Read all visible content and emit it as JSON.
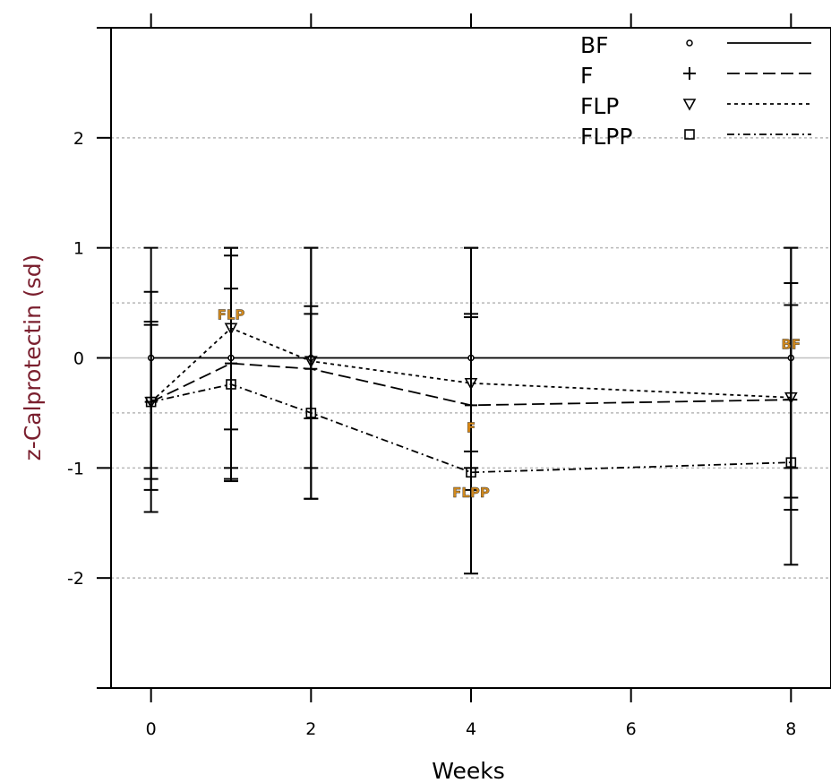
{
  "chart_data": {
    "type": "line",
    "xlabel": "Weeks",
    "ylabel": "z-Calprotectin (sd)",
    "xlim": [
      -0.5,
      8.5
    ],
    "ylim": [
      -3,
      3
    ],
    "x_ticks": [
      0,
      2,
      4,
      6,
      8
    ],
    "y_ticks": [
      -2,
      -1,
      0,
      1,
      2
    ],
    "y_tick_labels": [
      "-2",
      "-1",
      "0",
      "1",
      "2"
    ],
    "x_tick_labels": [
      "0",
      "2",
      "4",
      "6",
      "8"
    ],
    "grid_lines_y": [
      -2,
      -1,
      -0.5,
      0.5,
      1,
      2
    ],
    "reference_line_y": 0,
    "legend_position": "top-right",
    "series": [
      {
        "name": "BF",
        "symbol": "circle",
        "linestyle": "solid",
        "x": [
          0,
          1,
          2,
          4,
          8
        ],
        "y": [
          0,
          0,
          0,
          0,
          0
        ],
        "ci_low": [
          -1,
          -1,
          -1,
          -1,
          -1
        ],
        "ci_high": [
          1,
          1,
          1,
          1,
          1
        ]
      },
      {
        "name": "F",
        "symbol": "plus",
        "linestyle": "dashed",
        "x": [
          0,
          1,
          2,
          4,
          8
        ],
        "y": [
          -0.4,
          -0.05,
          -0.1,
          -0.43,
          -0.38
        ],
        "ci_low": [
          -1.4,
          -1.1,
          -1.28,
          -1.2,
          -1.38
        ],
        "ci_high": [
          0.6,
          0.93,
          1.0,
          0.37,
          0.68
        ]
      },
      {
        "name": "FLP",
        "symbol": "triangle-down",
        "linestyle": "dotted",
        "x": [
          0,
          1,
          2,
          4,
          8
        ],
        "y": [
          -0.4,
          0.27,
          -0.03,
          -0.23,
          -0.36
        ],
        "ci_low": [
          -1.2,
          -0.65,
          -0.55,
          -0.85,
          -1.27
        ],
        "ci_high": [
          0.33,
          1.0,
          0.47,
          1.0,
          1.0
        ]
      },
      {
        "name": "FLPP",
        "symbol": "square",
        "linestyle": "dotdash",
        "x": [
          0,
          1,
          2,
          4,
          8
        ],
        "y": [
          -0.4,
          -0.24,
          -0.5,
          -1.04,
          -0.95
        ],
        "ci_low": [
          -1.1,
          -1.12,
          -1.28,
          -1.96,
          -1.88
        ],
        "ci_high": [
          0.3,
          0.63,
          0.4,
          0.4,
          0.48
        ]
      }
    ],
    "point_labels": [
      {
        "text": "FLP",
        "x": 1,
        "y": 0.27,
        "color": "#d28a1e"
      },
      {
        "text": "BF",
        "x": 8,
        "y": 0.0,
        "color": "#d28a1e"
      },
      {
        "text": "F",
        "x": 4,
        "y": -0.43,
        "color": "#e08a10"
      },
      {
        "text": "FLPP",
        "x": 4,
        "y": -1.04,
        "color": "#d28a1e"
      }
    ],
    "colors": {
      "line": "#000000",
      "grid": "#b8b8b8",
      "reference": "#c0c0c0",
      "label_orange": "#d28a1e"
    }
  }
}
